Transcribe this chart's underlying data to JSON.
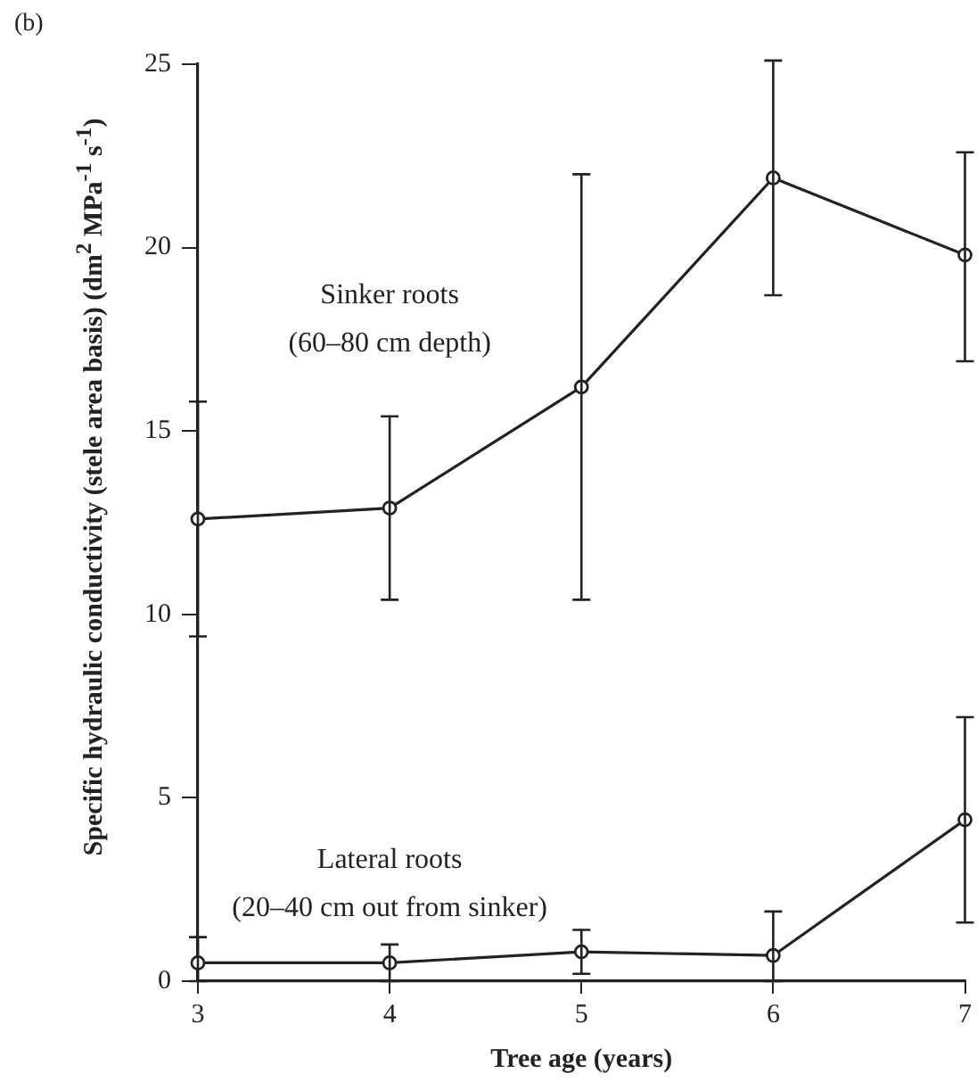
{
  "chart_data": {
    "type": "line",
    "xlabel": "Tree age (years)",
    "ylabel": "Specific hydraulic conductivity (stele area basis) (dm$^{2}$ MPa$^{-1}$ s$^{-1}$)",
    "x": [
      3,
      4,
      5,
      6,
      7
    ],
    "xlim": [
      3,
      7
    ],
    "xticks": [
      3,
      4,
      5,
      6,
      7
    ],
    "ylim": [
      0,
      25
    ],
    "yticks": [
      0,
      5,
      10,
      15,
      20,
      25
    ],
    "grid": false,
    "legend": false,
    "marker": "circle",
    "line_style": "solid",
    "series": [
      {
        "name": "Sinker roots\n(60–80 cm depth)",
        "color": "#222222",
        "values": [
          12.6,
          12.9,
          16.2,
          21.9,
          19.8
        ],
        "errors": [
          [
            9.4,
            15.8
          ],
          [
            10.4,
            15.4
          ],
          [
            10.4,
            22.0
          ],
          [
            18.7,
            25.1
          ],
          [
            16.9,
            22.6
          ]
        ]
      },
      {
        "name": "Lateral roots\n(20–40 cm out from sinker)",
        "color": "#222222",
        "values": [
          0.5,
          0.5,
          0.8,
          0.7,
          4.4
        ],
        "errors": [
          [
            0,
            1.2
          ],
          [
            0,
            1.0
          ],
          [
            0.2,
            1.4
          ],
          [
            0,
            1.9
          ],
          [
            1.6,
            7.2
          ]
        ]
      }
    ],
    "annotations": [
      "(b)"
    ]
  }
}
